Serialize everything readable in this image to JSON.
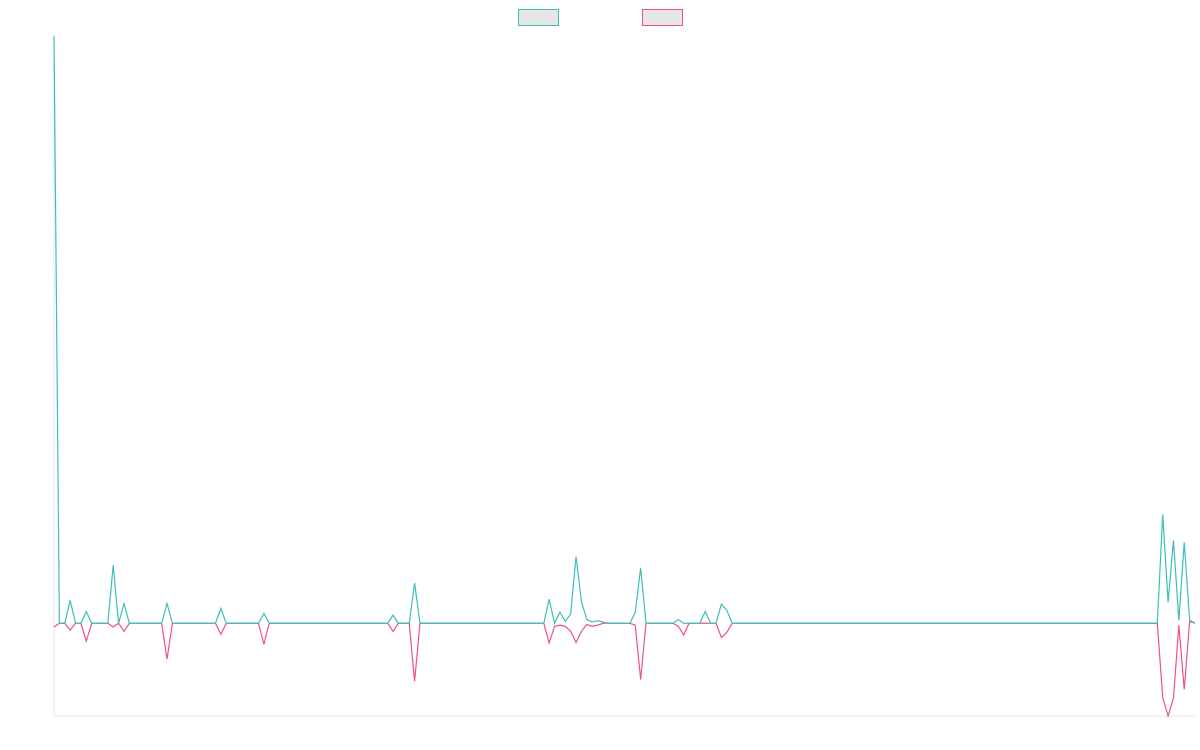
{
  "chart_data": {
    "type": "line",
    "ylim": [
      -15,
      95
    ],
    "legend": "top",
    "series": [
      {
        "color": "#3cbfb8",
        "values": [
          95,
          0,
          0,
          3.7,
          0,
          0,
          1.9,
          0,
          0,
          0,
          0,
          9.4,
          0,
          3.2,
          0,
          0,
          0,
          0,
          0,
          0,
          0,
          3.2,
          0,
          0,
          0,
          0,
          0,
          0,
          0,
          0,
          0,
          2.4,
          0,
          0,
          0,
          0,
          0,
          0,
          0,
          1.6,
          0,
          0,
          0,
          0,
          0,
          0,
          0,
          0,
          0,
          0,
          0,
          0,
          0,
          0,
          0,
          0,
          0,
          0,
          0,
          0,
          0,
          0,
          0,
          1.3,
          0,
          0,
          0,
          6.5,
          0,
          0,
          0,
          0,
          0,
          0,
          0,
          0,
          0,
          0,
          0,
          0,
          0,
          0,
          0,
          0,
          0,
          0,
          0,
          0,
          0,
          0,
          0,
          0,
          3.9,
          0,
          1.8,
          0.3,
          1.5,
          10.8,
          3.5,
          0.6,
          0.2,
          0.4,
          0.2,
          0,
          0,
          0,
          0,
          0,
          1.8,
          8.9,
          0,
          0,
          0,
          0,
          0,
          0,
          0.6,
          0,
          0,
          0,
          0,
          1.9,
          0,
          0,
          3.1,
          2.1,
          0,
          0,
          0,
          0,
          0,
          0,
          0,
          0,
          0,
          0,
          0,
          0,
          0,
          0,
          0,
          0,
          0,
          0,
          0,
          0,
          0,
          0,
          0,
          0,
          0,
          0,
          0,
          0,
          0,
          0,
          0,
          0,
          0,
          0,
          0,
          0,
          0,
          0,
          0,
          0,
          0,
          0,
          0,
          0,
          0,
          0,
          0,
          0,
          0,
          0,
          0,
          0,
          0,
          0,
          0,
          0,
          0,
          0,
          0,
          0,
          0,
          0,
          0,
          0,
          0,
          0,
          0,
          0,
          0,
          0,
          0,
          0,
          0,
          0,
          0,
          0,
          0,
          0,
          0,
          0,
          17.6,
          3.4,
          13.4,
          0.5,
          13.1,
          0.5,
          0
        ]
      },
      {
        "color": "#f0527a",
        "values": [
          -0.6,
          0,
          0,
          -1.1,
          0,
          0,
          -2.9,
          0,
          0,
          0,
          0,
          -0.6,
          0,
          -1.3,
          0,
          0,
          0,
          0,
          0,
          0,
          0,
          -5.8,
          0,
          0,
          0,
          0,
          0,
          0,
          0,
          0,
          0,
          -1.8,
          0,
          0,
          0,
          0,
          0,
          0,
          0,
          -3.4,
          0,
          0,
          0,
          0,
          0,
          0,
          0,
          0,
          0,
          0,
          0,
          0,
          0,
          0,
          0,
          0,
          0,
          0,
          0,
          0,
          0,
          0,
          0,
          -1.3,
          0,
          0,
          0,
          -9.4,
          0,
          0,
          0,
          0,
          0,
          0,
          0,
          0,
          0,
          0,
          0,
          0,
          0,
          0,
          0,
          0,
          0,
          0,
          0,
          0,
          0,
          0,
          0,
          0,
          -3.2,
          -0.5,
          -0.3,
          -0.5,
          -1.3,
          -3.1,
          -1.3,
          -0.2,
          -0.5,
          -0.3,
          0,
          0,
          0,
          0,
          0,
          0,
          -0.3,
          -9.1,
          0,
          0,
          0,
          0,
          0,
          0,
          -0.5,
          -1.9,
          0,
          0,
          0,
          0,
          0,
          0,
          -2.3,
          -1.5,
          0,
          0,
          0,
          0,
          0,
          0,
          0,
          0,
          0,
          0,
          0,
          0,
          0,
          0,
          0,
          0,
          0,
          0,
          0,
          0,
          0,
          0,
          0,
          0,
          0,
          0,
          0,
          0,
          0,
          0,
          0,
          0,
          0,
          0,
          0,
          0,
          0,
          0,
          0,
          0,
          0,
          0,
          0,
          0,
          0,
          0,
          0,
          0,
          0,
          0,
          0,
          0,
          0,
          0,
          0,
          0,
          0,
          0,
          0,
          0,
          0,
          0,
          0,
          0,
          0,
          0,
          0,
          0,
          0,
          0,
          0,
          0,
          0,
          0,
          0,
          0,
          0,
          0,
          0,
          0,
          -12,
          -15,
          -12.1,
          -0.3,
          -10.7,
          0.3,
          0
        ]
      }
    ]
  }
}
